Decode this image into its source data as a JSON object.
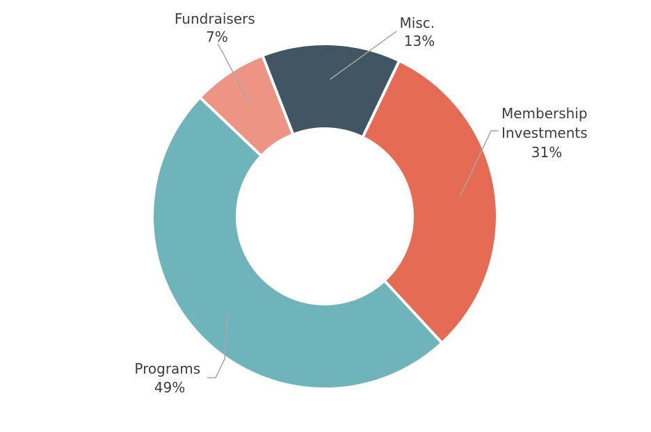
{
  "chart_data": {
    "type": "pie",
    "variant": "donut",
    "title": "",
    "slices": [
      {
        "label_lines": [
          "Misc."
        ],
        "value": 13,
        "value_label": "13%",
        "color": "#425563"
      },
      {
        "label_lines": [
          "Membership",
          "Investments"
        ],
        "value": 31,
        "value_label": "31%",
        "color": "#e56b55"
      },
      {
        "label_lines": [
          "Programs"
        ],
        "value": 49,
        "value_label": "49%",
        "color": "#6fb4ba"
      },
      {
        "label_lines": [
          "Fundraisers"
        ],
        "value": 7,
        "value_label": "7%",
        "color": "#ee9484"
      }
    ],
    "legend": "none",
    "separator_color": "#ffffff"
  }
}
